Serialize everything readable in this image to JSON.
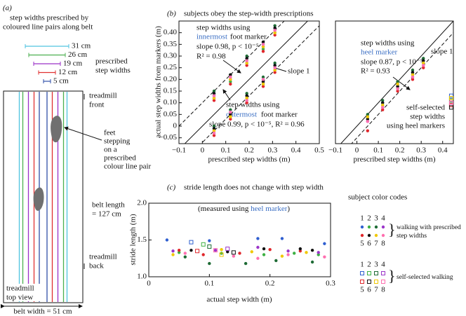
{
  "panel_a": {
    "label": "(a)",
    "heading": [
      "step widths prescribed by",
      "coloured line pairs along belt"
    ],
    "step_widths": [
      {
        "label": "31 cm",
        "color": "#4fc3e0"
      },
      {
        "label": "26 cm",
        "color": "#4caf50"
      },
      {
        "label": "19 cm",
        "color": "#9b30c8"
      },
      {
        "label": "12 cm",
        "color": "#e03030"
      },
      {
        "label": "5 cm",
        "color": "#2f4fa8"
      }
    ],
    "step_widths_label": [
      "prescribed",
      "step widths"
    ],
    "treadmill_front": [
      "treadmill",
      "front"
    ],
    "feet_label": [
      "feet",
      "stepping",
      "on a",
      "prescribed",
      "colour line pair"
    ],
    "belt_length": [
      "belt length",
      "= 127 cm"
    ],
    "treadmill_back": [
      "treadmill",
      "back"
    ],
    "top_view": [
      "treadmill",
      "top view"
    ],
    "belt_width": "belt width = 51 cm"
  },
  "chart_data": [
    {
      "type": "scatter",
      "panel": "(b)",
      "title": "subjects obey the step-width prescriptions",
      "x_label": "prescribed step widths (m)",
      "y_label": "actual step widths from markers (m)",
      "xlim": [
        -0.1,
        0.5
      ],
      "ylim": [
        -0.075,
        0.45
      ],
      "xticks": [
        {
          "value": -0.1,
          "label": "−0.1"
        },
        0,
        0.1,
        0.2,
        0.3,
        0.4,
        0.5
      ],
      "yticks": [
        {
          "value": -0.05,
          "label": "−0.05"
        },
        0,
        0.05,
        {
          "value": 0.1,
          "label": "0.10"
        },
        0.15,
        {
          "value": 0.2,
          "label": "0.20"
        },
        0.25,
        {
          "value": 0.3,
          "label": "0.30"
        },
        0.35,
        {
          "value": 0.4,
          "label": "0.40"
        }
      ],
      "lines": [
        {
          "slope": 1,
          "intercept": 0,
          "dashed": false
        },
        {
          "slope": 1,
          "intercept": 0.1,
          "dashed": true
        },
        {
          "slope": 1,
          "intercept": -0.07,
          "dashed": true
        }
      ],
      "annotations": [
        "step widths using",
        "innermost",
        "foot marker",
        "slope 0.98, p < 10⁻⁵",
        "R² = 0.98",
        "slope 1",
        "step widths using",
        "outermost",
        "foot marker",
        "slope 0.99, p < 10⁻⁵, R² = 0.96"
      ],
      "series": [
        {
          "marker": "circle",
          "color": "#2f5fd0",
          "x": [
            0.05,
            0.12,
            0.19,
            0.26,
            0.31
          ],
          "values": [
            0.14,
            0.21,
            0.29,
            0.35,
            0.42
          ]
        },
        {
          "marker": "circle",
          "color": "#3cb043",
          "x": [
            0.05,
            0.12,
            0.19,
            0.26,
            0.31
          ],
          "values": [
            0.12,
            0.19,
            0.27,
            0.33,
            0.4
          ]
        },
        {
          "marker": "circle",
          "color": "#1e6b35",
          "x": [
            0.05,
            0.12,
            0.19,
            0.26,
            0.31
          ],
          "values": [
            0.15,
            0.22,
            0.3,
            0.36,
            0.43
          ]
        },
        {
          "marker": "circle",
          "color": "#9b35c9",
          "x": [
            0.05,
            0.12,
            0.19,
            0.26,
            0.31
          ],
          "values": [
            0.13,
            0.2,
            0.28,
            0.34,
            0.41
          ]
        },
        {
          "marker": "circle",
          "color": "#e0262b",
          "x": [
            0.05,
            0.12,
            0.19,
            0.26,
            0.31
          ],
          "values": [
            0.11,
            0.18,
            0.26,
            0.32,
            0.39
          ]
        },
        {
          "marker": "circle",
          "color": "#111111",
          "x": [
            0.05,
            0.12,
            0.19,
            0.26,
            0.31
          ],
          "values": [
            0.14,
            0.22,
            0.29,
            0.36,
            0.42
          ]
        },
        {
          "marker": "circle",
          "color": "#f0c800",
          "x": [
            0.05,
            0.12,
            0.19,
            0.26,
            0.31
          ],
          "values": [
            0.12,
            0.2,
            0.27,
            0.34,
            0.4
          ]
        },
        {
          "marker": "circle",
          "color": "#ff6fb0",
          "x": [
            0.05,
            0.12,
            0.19,
            0.26,
            0.31
          ],
          "values": [
            0.13,
            0.21,
            0.28,
            0.35,
            0.41
          ]
        },
        {
          "marker": "circle",
          "color": "#2f5fd0",
          "x": [
            0.05,
            0.12,
            0.19,
            0.26,
            0.31
          ],
          "values": [
            -0.01,
            0.06,
            0.13,
            0.2,
            0.26
          ]
        },
        {
          "marker": "circle",
          "color": "#3cb043",
          "x": [
            0.05,
            0.12,
            0.19,
            0.26,
            0.31
          ],
          "values": [
            -0.03,
            0.04,
            0.11,
            0.18,
            0.24
          ]
        },
        {
          "marker": "circle",
          "color": "#1e6b35",
          "x": [
            0.05,
            0.12,
            0.19,
            0.26,
            0.31
          ],
          "values": [
            0.0,
            0.07,
            0.14,
            0.21,
            0.27
          ]
        },
        {
          "marker": "circle",
          "color": "#9b35c9",
          "x": [
            0.05,
            0.12,
            0.19,
            0.26,
            0.31
          ],
          "values": [
            -0.02,
            0.05,
            0.12,
            0.19,
            0.25
          ]
        },
        {
          "marker": "circle",
          "color": "#e0262b",
          "x": [
            0.05,
            0.12,
            0.19,
            0.26,
            0.31
          ],
          "values": [
            -0.04,
            0.03,
            0.1,
            0.17,
            0.23
          ]
        },
        {
          "marker": "circle",
          "color": "#111111",
          "x": [
            0.05,
            0.12,
            0.19,
            0.26,
            0.31
          ],
          "values": [
            -0.01,
            0.05,
            0.13,
            0.19,
            0.26
          ]
        },
        {
          "marker": "circle",
          "color": "#f0c800",
          "x": [
            0.05,
            0.12,
            0.19,
            0.26,
            0.31
          ],
          "values": [
            -0.02,
            0.04,
            0.12,
            0.18,
            0.24
          ]
        },
        {
          "marker": "circle",
          "color": "#ff6fb0",
          "x": [
            0.05,
            0.12,
            0.19,
            0.26,
            0.31
          ],
          "values": [
            -0.03,
            0.06,
            0.11,
            0.2,
            0.25
          ]
        }
      ]
    },
    {
      "type": "scatter",
      "x_label": "prescribed step widths (m)",
      "xlim": [
        -0.1,
        0.45
      ],
      "ylim": [
        -0.075,
        0.45
      ],
      "xticks": [
        {
          "value": -0.1,
          "label": "−0.1"
        },
        0,
        0.1,
        0.2,
        0.3,
        0.4
      ],
      "lines": [
        {
          "slope": 1,
          "intercept": 0,
          "dashed": false
        },
        {
          "slope": 1,
          "intercept": -0.05,
          "dashed": true
        }
      ],
      "annotations": [
        "step widths using",
        "heel marker",
        "slope 0.87, p < 10⁻⁵",
        "R² = 0.93",
        "slope 1",
        "self-selected",
        "step widths",
        "using heel markers"
      ],
      "series": [
        {
          "marker": "circle",
          "color": "#2f5fd0",
          "x": [
            0.05,
            0.12,
            0.19,
            0.26,
            0.31
          ],
          "values": [
            0.04,
            0.1,
            0.18,
            0.23,
            0.28
          ]
        },
        {
          "marker": "circle",
          "color": "#3cb043",
          "x": [
            0.05,
            0.12,
            0.19,
            0.26,
            0.31
          ],
          "values": [
            0.03,
            0.09,
            0.16,
            0.22,
            0.27
          ]
        },
        {
          "marker": "circle",
          "color": "#1e6b35",
          "x": [
            0.05,
            0.12,
            0.19,
            0.26,
            0.31
          ],
          "values": [
            0.05,
            0.11,
            0.19,
            0.24,
            0.29
          ]
        },
        {
          "marker": "circle",
          "color": "#9b35c9",
          "x": [
            0.05,
            0.12,
            0.19,
            0.26,
            0.31
          ],
          "values": [
            0.02,
            0.08,
            0.17,
            0.21,
            0.26
          ]
        },
        {
          "marker": "circle",
          "color": "#e0262b",
          "x": [
            0.05,
            0.12,
            0.19,
            0.26,
            0.31
          ],
          "values": [
            -0.02,
            0.07,
            0.15,
            0.2,
            0.25
          ]
        },
        {
          "marker": "circle",
          "color": "#111111",
          "x": [
            0.05,
            0.12,
            0.19,
            0.26,
            0.31
          ],
          "values": [
            0.03,
            0.1,
            0.17,
            0.23,
            0.28
          ]
        },
        {
          "marker": "circle",
          "color": "#f0c800",
          "x": [
            0.05,
            0.12,
            0.19,
            0.26,
            0.31
          ],
          "values": [
            0.04,
            0.09,
            0.18,
            0.22,
            0.27
          ]
        },
        {
          "marker": "circle",
          "color": "#ff6fb0",
          "x": [
            0.05,
            0.12,
            0.19,
            0.26,
            0.31
          ],
          "values": [
            0.02,
            0.08,
            0.16,
            0.21,
            0.26
          ]
        },
        {
          "marker": "square",
          "color": "#2f5fd0",
          "x": [
            0.44
          ],
          "values": [
            0.13
          ]
        },
        {
          "marker": "square",
          "color": "#3cb043",
          "x": [
            0.44
          ],
          "values": [
            0.12
          ]
        },
        {
          "marker": "square",
          "color": "#1e6b35",
          "x": [
            0.44
          ],
          "values": [
            0.11
          ]
        },
        {
          "marker": "square",
          "color": "#9b35c9",
          "x": [
            0.44
          ],
          "values": [
            0.1
          ]
        },
        {
          "marker": "square",
          "color": "#e0262b",
          "x": [
            0.44
          ],
          "values": [
            0.09
          ]
        },
        {
          "marker": "square",
          "color": "#111111",
          "x": [
            0.44
          ],
          "values": [
            0.08
          ]
        },
        {
          "marker": "square",
          "color": "#f0c800",
          "x": [
            0.44
          ],
          "values": [
            0.12
          ]
        },
        {
          "marker": "square",
          "color": "#ff6fb0",
          "x": [
            0.44
          ],
          "values": [
            0.1
          ]
        }
      ]
    },
    {
      "type": "scatter",
      "panel": "(c)",
      "title": "stride length does not change with step width",
      "annotations": [
        "(measured using ",
        "heel marker",
        ")"
      ],
      "x_label": "actual step width (m)",
      "y_label": "stride length (m)",
      "xlim": [
        0,
        0.3
      ],
      "ylim": [
        1.0,
        2.0
      ],
      "xticks": [
        0,
        0.1,
        0.2,
        0.3
      ],
      "yticks": [
        {
          "value": 1.0,
          "label": "1.0"
        },
        1.5,
        {
          "value": 2.0,
          "label": "2.0"
        }
      ],
      "legend_title": "subject color codes",
      "legend_groups": [
        {
          "marker": "circle",
          "label": [
            "walking with prescribed",
            "step widths"
          ]
        },
        {
          "marker": "square",
          "label": [
            "self-selected walking"
          ]
        }
      ],
      "series": [
        {
          "name": "1",
          "marker": "circle",
          "color": "#2f5fd0",
          "x": [
            0.03,
            0.1,
            0.18,
            0.22,
            0.29
          ],
          "values": [
            1.5,
            1.49,
            1.52,
            1.52,
            1.45
          ]
        },
        {
          "name": "2",
          "marker": "circle",
          "color": "#3cb043",
          "x": [
            0.05,
            0.12,
            0.19,
            0.24,
            0.28
          ],
          "values": [
            1.33,
            1.32,
            1.3,
            1.32,
            1.3
          ]
        },
        {
          "name": "3",
          "marker": "circle",
          "color": "#1e6b35",
          "x": [
            0.06,
            0.1,
            0.16,
            0.21,
            0.27
          ],
          "values": [
            1.27,
            1.18,
            1.18,
            1.22,
            1.2
          ]
        },
        {
          "name": "4",
          "marker": "circle",
          "color": "#9b35c9",
          "x": [
            0.04,
            0.11,
            0.18,
            0.23,
            0.28
          ],
          "values": [
            1.35,
            1.36,
            1.4,
            1.35,
            1.33
          ]
        },
        {
          "name": "5",
          "marker": "circle",
          "color": "#e0262b",
          "x": [
            0.05,
            0.09,
            0.15,
            0.2,
            0.25
          ],
          "values": [
            1.36,
            1.3,
            1.32,
            1.37,
            1.35
          ]
        },
        {
          "name": "6",
          "marker": "circle",
          "color": "#111111",
          "x": [
            0.07,
            0.13,
            0.19,
            0.25,
            0.27
          ],
          "values": [
            1.36,
            1.34,
            1.38,
            1.38,
            1.36
          ]
        },
        {
          "name": "7",
          "marker": "circle",
          "color": "#f0c800",
          "x": [
            0.04,
            0.12,
            0.17,
            0.22,
            0.26
          ],
          "values": [
            1.3,
            1.37,
            1.34,
            1.28,
            1.33
          ]
        },
        {
          "name": "8",
          "marker": "circle",
          "color": "#ff6fb0",
          "x": [
            0.06,
            0.14,
            0.18,
            0.23,
            0.29
          ],
          "values": [
            1.32,
            1.28,
            1.25,
            1.3,
            1.27
          ]
        },
        {
          "name": "1",
          "marker": "square",
          "color": "#2f5fd0",
          "x": [
            0.07
          ],
          "values": [
            1.47
          ]
        },
        {
          "name": "2",
          "marker": "square",
          "color": "#3cb043",
          "x": [
            0.09
          ],
          "values": [
            1.44
          ]
        },
        {
          "name": "3",
          "marker": "square",
          "color": "#1e6b35",
          "x": [
            0.1
          ],
          "values": [
            1.41
          ]
        },
        {
          "name": "4",
          "marker": "square",
          "color": "#9b35c9",
          "x": [
            0.13
          ],
          "values": [
            1.38
          ]
        },
        {
          "name": "5",
          "marker": "square",
          "color": "#e0262b",
          "x": [
            0.08
          ],
          "values": [
            1.35
          ]
        },
        {
          "name": "6",
          "marker": "square",
          "color": "#111111",
          "x": [
            0.14
          ],
          "values": [
            1.33
          ]
        },
        {
          "name": "7",
          "marker": "square",
          "color": "#f0c800",
          "x": [
            0.12
          ],
          "values": [
            1.3
          ]
        },
        {
          "name": "8",
          "marker": "square",
          "color": "#ff6fb0",
          "x": [
            0.11
          ],
          "values": [
            1.36
          ]
        }
      ]
    }
  ]
}
